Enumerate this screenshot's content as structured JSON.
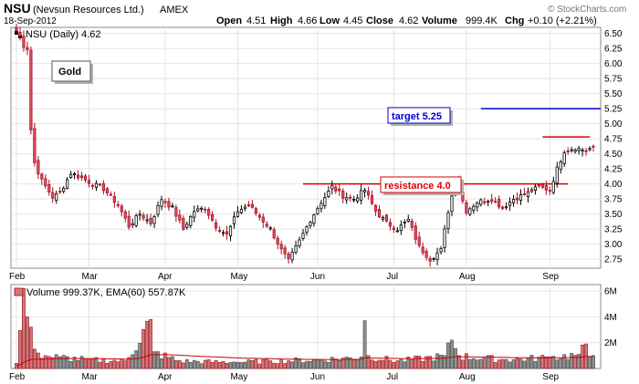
{
  "header": {
    "symbol": "NSU",
    "company": "(Nevsun Resources Ltd.)",
    "exchange": "AMEX",
    "date": "18-Sep-2012",
    "open_label": "Open",
    "open": "4.51",
    "high_label": "High",
    "high": "4.66",
    "low_label": "Low",
    "low": "4.45",
    "close_label": "Close",
    "close": "4.62",
    "volume_label": "Volume",
    "volume": "999.4K",
    "chg_label": "Chg",
    "chg": "+0.10 (+2.21%)",
    "copyright": "© StockCharts.com"
  },
  "price_legend": "NSU (Daily) 4.62",
  "volume_legend": "Volume 999.37K, EMA(60) 557.87K",
  "gold_label": "Gold",
  "annotations": {
    "target": {
      "label": "target 5.25",
      "value": 5.25,
      "color": "#0000cc"
    },
    "resistance": {
      "label": "resistance 4.0",
      "value": 4.0,
      "color": "#dd0000"
    },
    "upper_line": {
      "value": 4.78,
      "color": "#dd0000"
    }
  },
  "chart_data": {
    "type": "candlestick",
    "y_ticks": [
      2.75,
      3.0,
      3.25,
      3.5,
      3.75,
      4.0,
      4.25,
      4.5,
      4.75,
      5.0,
      5.25,
      5.5,
      5.75,
      6.0,
      6.25,
      6.5
    ],
    "ylim": [
      2.6,
      6.6
    ],
    "volume_ticks": [
      "2M",
      "4M",
      "6M"
    ],
    "volume_tick_values": [
      2,
      4,
      6
    ],
    "volume_max": 6.5,
    "months": [
      {
        "label": "Feb",
        "index": 0
      },
      {
        "label": "Mar",
        "index": 20
      },
      {
        "label": "Apr",
        "index": 41
      },
      {
        "label": "May",
        "index": 61
      },
      {
        "label": "Jun",
        "index": 83
      },
      {
        "label": "Jul",
        "index": 104
      },
      {
        "label": "Aug",
        "index": 124
      },
      {
        "label": "Sep",
        "index": 147
      }
    ],
    "num_days": 160,
    "price_anchors": [
      [
        0,
        6.55
      ],
      [
        1,
        6.45
      ],
      [
        2,
        6.3
      ],
      [
        3,
        6.25
      ],
      [
        4,
        4.9
      ],
      [
        5,
        4.35
      ],
      [
        7,
        4.05
      ],
      [
        10,
        3.78
      ],
      [
        12,
        3.85
      ],
      [
        15,
        4.18
      ],
      [
        18,
        4.1
      ],
      [
        21,
        4.0
      ],
      [
        24,
        3.92
      ],
      [
        28,
        3.65
      ],
      [
        31,
        3.3
      ],
      [
        34,
        3.5
      ],
      [
        37,
        3.35
      ],
      [
        40,
        3.75
      ],
      [
        43,
        3.6
      ],
      [
        46,
        3.25
      ],
      [
        49,
        3.55
      ],
      [
        52,
        3.6
      ],
      [
        55,
        3.3
      ],
      [
        58,
        3.15
      ],
      [
        61,
        3.55
      ],
      [
        64,
        3.65
      ],
      [
        67,
        3.45
      ],
      [
        70,
        3.25
      ],
      [
        73,
        2.9
      ],
      [
        75,
        2.72
      ],
      [
        78,
        3.05
      ],
      [
        81,
        3.4
      ],
      [
        84,
        3.7
      ],
      [
        87,
        3.95
      ],
      [
        90,
        3.8
      ],
      [
        93,
        3.75
      ],
      [
        96,
        3.9
      ],
      [
        99,
        3.55
      ],
      [
        102,
        3.35
      ],
      [
        105,
        3.25
      ],
      [
        108,
        3.4
      ],
      [
        111,
        2.95
      ],
      [
        114,
        2.75
      ],
      [
        117,
        2.9
      ],
      [
        119,
        3.55
      ],
      [
        121,
        4.05
      ],
      [
        124,
        3.55
      ],
      [
        127,
        3.7
      ],
      [
        131,
        3.75
      ],
      [
        134,
        3.6
      ],
      [
        137,
        3.75
      ],
      [
        141,
        3.85
      ],
      [
        144,
        3.95
      ],
      [
        147,
        3.9
      ],
      [
        149,
        4.25
      ],
      [
        151,
        4.55
      ],
      [
        154,
        4.6
      ],
      [
        157,
        4.55
      ],
      [
        159,
        4.62
      ]
    ],
    "volume_anchors": [
      [
        0,
        0.4
      ],
      [
        2,
        6.2
      ],
      [
        3,
        4.0
      ],
      [
        4,
        3.2
      ],
      [
        5,
        1.5
      ],
      [
        6,
        1.2
      ],
      [
        8,
        1.0
      ],
      [
        12,
        0.9
      ],
      [
        20,
        0.7
      ],
      [
        30,
        0.6
      ],
      [
        37,
        3.8
      ],
      [
        38,
        1.3
      ],
      [
        45,
        0.6
      ],
      [
        60,
        0.5
      ],
      [
        70,
        0.6
      ],
      [
        83,
        0.7
      ],
      [
        95,
        0.9
      ],
      [
        96,
        3.7
      ],
      [
        97,
        1.0
      ],
      [
        105,
        0.6
      ],
      [
        118,
        1.0
      ],
      [
        120,
        2.2
      ],
      [
        122,
        1.0
      ],
      [
        135,
        0.7
      ],
      [
        147,
        0.9
      ],
      [
        155,
        1.1
      ],
      [
        157,
        1.9
      ],
      [
        159,
        1.0
      ]
    ]
  }
}
